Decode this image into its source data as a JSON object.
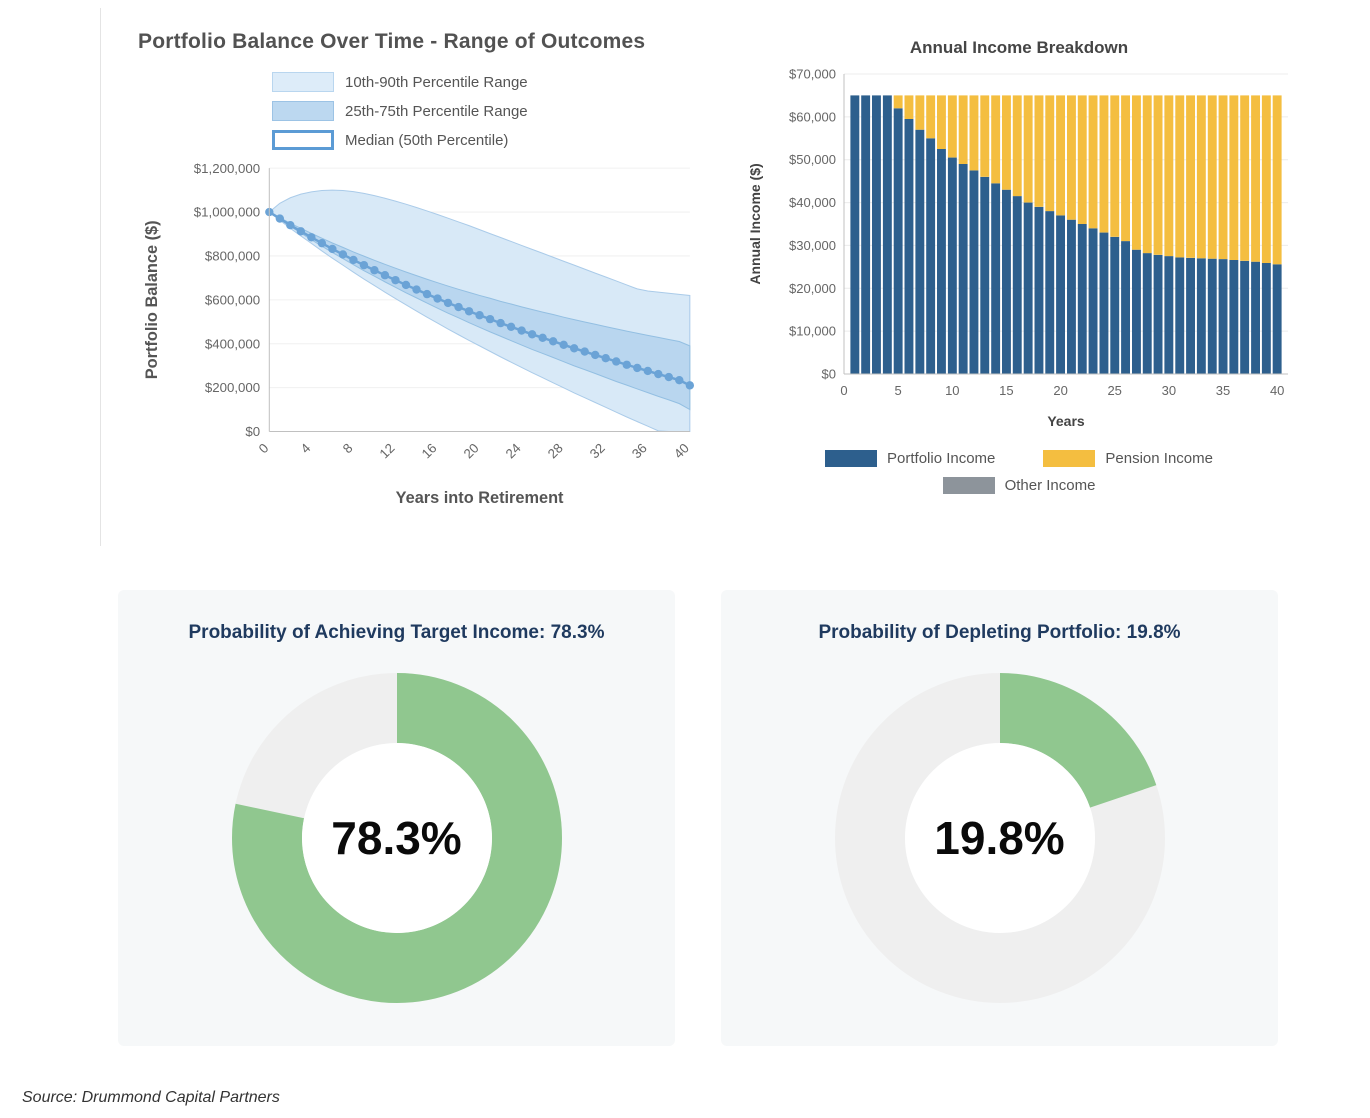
{
  "page": {
    "source_note": "Source: Drummond Capital Partners"
  },
  "chart_data": [
    {
      "id": "portfolio-balance-fan",
      "type": "area",
      "title": "Portfolio Balance Over Time - Range of Outcomes",
      "xlabel": "Years into Retirement",
      "ylabel": "Portfolio Balance ($)",
      "xlim": [
        0,
        40
      ],
      "ylim": [
        0,
        1200000
      ],
      "x_ticks": [
        0,
        4,
        8,
        12,
        16,
        20,
        24,
        28,
        32,
        36,
        40
      ],
      "y_ticks": [
        0,
        200000,
        400000,
        600000,
        800000,
        1000000,
        1200000
      ],
      "grid": true,
      "legend_position": "top",
      "legend": [
        {
          "label": "10th-90th Percentile Range",
          "fill": "#ddecf9",
          "border": "#b9d6ef",
          "border_width": 1
        },
        {
          "label": "25th-75th Percentile Range",
          "fill": "#bcd8f0",
          "border": "#9cc3e5",
          "border_width": 1
        },
        {
          "label": "Median (50th Percentile)",
          "fill": "#ffffff",
          "border": "#5b9bd5",
          "border_width": 3
        }
      ],
      "colors": {
        "band_outer": "#d8e9f7",
        "band_outer_edge": "#aacbe9",
        "band_inner": "#b9d6ef",
        "band_inner_edge": "#93bfe2",
        "median": "#6ba3d6"
      },
      "x": [
        0,
        1,
        2,
        3,
        4,
        5,
        6,
        7,
        8,
        9,
        10,
        11,
        12,
        13,
        14,
        15,
        16,
        17,
        18,
        19,
        20,
        21,
        22,
        23,
        24,
        25,
        26,
        27,
        28,
        29,
        30,
        31,
        32,
        33,
        34,
        35,
        36,
        37,
        38,
        39,
        40
      ],
      "series": {
        "p10": [
          1000000,
          963000,
          926000,
          891000,
          857000,
          823000,
          790000,
          758000,
          726000,
          695000,
          665000,
          635000,
          606000,
          577000,
          549000,
          521000,
          494000,
          467000,
          441000,
          415000,
          390000,
          365000,
          340000,
          316000,
          292000,
          268000,
          245000,
          222000,
          199000,
          176000,
          154000,
          132000,
          110000,
          88000,
          66000,
          45000,
          24000,
          3000,
          0,
          0,
          0
        ],
        "p25": [
          1000000,
          967000,
          935000,
          904000,
          874000,
          844000,
          816000,
          788000,
          760000,
          733000,
          708000,
          682000,
          657000,
          632000,
          609000,
          585000,
          562000,
          539000,
          518000,
          496000,
          475000,
          454000,
          434000,
          414000,
          394000,
          374000,
          356000,
          337000,
          318000,
          299000,
          282000,
          264000,
          246000,
          228000,
          211000,
          194000,
          177000,
          160000,
          144000,
          127000,
          100000
        ],
        "median": [
          1000000,
          970000,
          940000,
          912000,
          885000,
          858000,
          832000,
          807000,
          782000,
          758000,
          735000,
          712000,
          690000,
          668000,
          647000,
          626000,
          606000,
          586000,
          567000,
          548000,
          530000,
          512000,
          494000,
          477000,
          460000,
          443000,
          427000,
          411000,
          395000,
          379000,
          364000,
          349000,
          334000,
          319000,
          304000,
          290000,
          276000,
          262000,
          248000,
          234000,
          210000
        ],
        "p75": [
          1000000,
          975000,
          949000,
          926000,
          903000,
          881000,
          859000,
          839000,
          818000,
          799000,
          780000,
          762000,
          744000,
          727000,
          710000,
          694000,
          678000,
          663000,
          648000,
          634000,
          620000,
          607000,
          593000,
          581000,
          568000,
          556000,
          544000,
          533000,
          521000,
          510000,
          499000,
          489000,
          478000,
          468000,
          457000,
          448000,
          438000,
          429000,
          419000,
          410000,
          390000
        ],
        "p90": [
          1000000,
          1040000,
          1065000,
          1082000,
          1092000,
          1098000,
          1100000,
          1098000,
          1093000,
          1085000,
          1075000,
          1063000,
          1050000,
          1036000,
          1021000,
          1005000,
          989000,
          972000,
          955000,
          938000,
          920000,
          902000,
          884000,
          866000,
          848000,
          830000,
          812000,
          794000,
          776000,
          758000,
          740000,
          722000,
          704000,
          686000,
          668000,
          650000,
          640000,
          635000,
          630000,
          625000,
          620000
        ]
      }
    },
    {
      "id": "annual-income-bars",
      "type": "bar",
      "stacked": true,
      "title": "Annual Income Breakdown",
      "xlabel": "Years",
      "ylabel": "Annual Income ($)",
      "ylim": [
        0,
        70000
      ],
      "x_ticks": [
        0,
        5,
        10,
        15,
        20,
        25,
        30,
        35,
        40
      ],
      "y_ticks": [
        0,
        10000,
        20000,
        30000,
        40000,
        50000,
        60000,
        70000
      ],
      "total_income": 65000,
      "legend_position": "bottom",
      "years": [
        1,
        2,
        3,
        4,
        5,
        6,
        7,
        8,
        9,
        10,
        11,
        12,
        13,
        14,
        15,
        16,
        17,
        18,
        19,
        20,
        21,
        22,
        23,
        24,
        25,
        26,
        27,
        28,
        29,
        30,
        31,
        32,
        33,
        34,
        35,
        36,
        37,
        38,
        39,
        40
      ],
      "series": [
        {
          "name": "Portfolio Income",
          "color": "#2d5f8d",
          "values": [
            65000,
            65000,
            65000,
            65000,
            62000,
            59500,
            57000,
            55000,
            52500,
            50500,
            49000,
            47500,
            46000,
            44500,
            43000,
            41500,
            40000,
            39000,
            38000,
            37000,
            36000,
            35000,
            34000,
            33000,
            32000,
            31000,
            29000,
            28200,
            27800,
            27500,
            27200,
            27100,
            27000,
            26900,
            26800,
            26600,
            26400,
            26200,
            25900,
            25600
          ]
        },
        {
          "name": "Pension Income",
          "color": "#f4be40",
          "values": [
            0,
            0,
            0,
            0,
            3000,
            5500,
            8000,
            10000,
            12500,
            14500,
            16000,
            17500,
            19000,
            20500,
            22000,
            23500,
            25000,
            26000,
            27000,
            28000,
            29000,
            30000,
            31000,
            32000,
            33000,
            34000,
            36000,
            36800,
            37200,
            37500,
            37800,
            37900,
            38000,
            38100,
            38200,
            38400,
            38600,
            38800,
            39100,
            39400
          ]
        },
        {
          "name": "Other Income",
          "color": "#8d949b",
          "values": []
        }
      ]
    },
    {
      "id": "gauge-target-income",
      "type": "pie",
      "title": "Probability of Achieving Target Income: 78.3%",
      "value": 78.3,
      "label": "78.3%",
      "colors": {
        "fill": "#90c78f",
        "rest": "#efefef"
      }
    },
    {
      "id": "gauge-depletion",
      "type": "pie",
      "title": "Probability of Depleting Portfolio: 19.8%",
      "value": 19.8,
      "label": "19.8%",
      "colors": {
        "fill": "#90c78f",
        "rest": "#efefef"
      }
    }
  ]
}
